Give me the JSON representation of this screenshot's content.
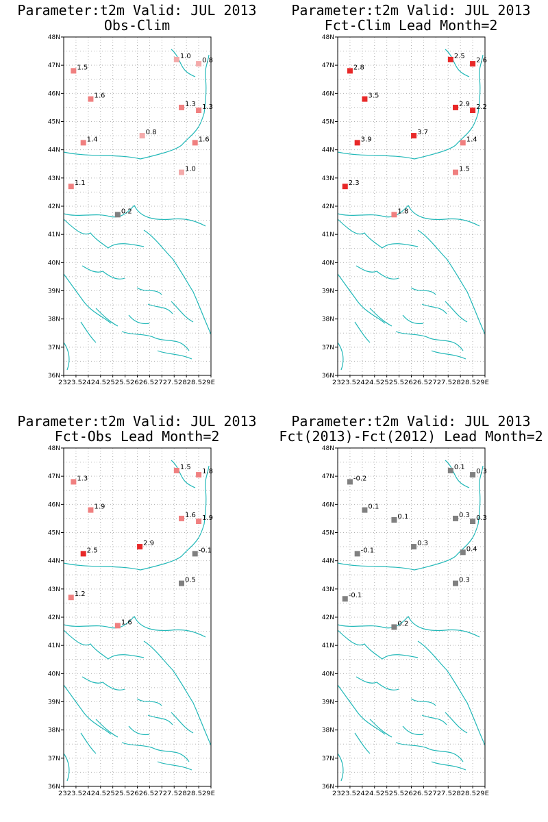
{
  "colors": {
    "coast": "#22b8b8",
    "grid": "#b0b0b0",
    "frame": "#000000",
    "neutral": "#808080",
    "light": "#f4aaaa",
    "medium": "#f08080",
    "strong": "#e84848",
    "stronger": "#e82828"
  },
  "map": {
    "lon_range": [
      23,
      29
    ],
    "lat_range": [
      36,
      48
    ],
    "lat_ticks": [
      "36N",
      "37N",
      "38N",
      "39N",
      "40N",
      "41N",
      "42N",
      "43N",
      "44N",
      "45N",
      "46N",
      "47N",
      "48N"
    ],
    "lon_ticks_text": "2323.52424.52525.52626.52727.52828.529E"
  },
  "panels": [
    {
      "title_line1": "Parameter:t2m Valid: JUL 2013",
      "title_line2": "Obs-Clim",
      "stations": [
        {
          "lon": 23.4,
          "lat": 46.8,
          "label": "1.5",
          "color": "medium"
        },
        {
          "lon": 24.1,
          "lat": 45.8,
          "label": "1.6",
          "color": "medium"
        },
        {
          "lon": 23.8,
          "lat": 44.25,
          "label": "1.4",
          "color": "medium"
        },
        {
          "lon": 23.3,
          "lat": 42.7,
          "label": "1.1",
          "color": "medium"
        },
        {
          "lon": 25.2,
          "lat": 41.7,
          "label": "0.2",
          "color": "neutral"
        },
        {
          "lon": 26.2,
          "lat": 44.5,
          "label": "0.8",
          "color": "light"
        },
        {
          "lon": 27.6,
          "lat": 47.2,
          "label": "1.0",
          "color": "light"
        },
        {
          "lon": 28.5,
          "lat": 47.05,
          "label": "0.8",
          "color": "light"
        },
        {
          "lon": 27.8,
          "lat": 45.5,
          "label": "1.3",
          "color": "medium"
        },
        {
          "lon": 28.5,
          "lat": 45.4,
          "label": "1.3",
          "color": "medium"
        },
        {
          "lon": 28.35,
          "lat": 44.25,
          "label": "1.6",
          "color": "medium"
        },
        {
          "lon": 27.8,
          "lat": 43.2,
          "label": "1.0",
          "color": "light"
        }
      ]
    },
    {
      "title_line1": "Parameter:t2m Valid: JUL 2013",
      "title_line2": "Fct-Clim Lead Month=2",
      "stations": [
        {
          "lon": 23.5,
          "lat": 46.8,
          "label": "2.8",
          "color": "stronger"
        },
        {
          "lon": 24.1,
          "lat": 45.8,
          "label": "3.5",
          "color": "stronger"
        },
        {
          "lon": 23.8,
          "lat": 44.25,
          "label": "3.9",
          "color": "stronger"
        },
        {
          "lon": 23.3,
          "lat": 42.7,
          "label": "2.3",
          "color": "stronger"
        },
        {
          "lon": 25.3,
          "lat": 41.7,
          "label": "1.8",
          "color": "medium"
        },
        {
          "lon": 26.1,
          "lat": 44.5,
          "label": "3.7",
          "color": "stronger"
        },
        {
          "lon": 27.6,
          "lat": 47.2,
          "label": "2.5",
          "color": "stronger"
        },
        {
          "lon": 28.5,
          "lat": 47.05,
          "label": "2.6",
          "color": "stronger"
        },
        {
          "lon": 27.8,
          "lat": 45.5,
          "label": "2.9",
          "color": "stronger"
        },
        {
          "lon": 28.5,
          "lat": 45.4,
          "label": "2.2",
          "color": "stronger"
        },
        {
          "lon": 28.1,
          "lat": 44.25,
          "label": "1.4",
          "color": "medium"
        },
        {
          "lon": 27.8,
          "lat": 43.2,
          "label": "1.5",
          "color": "medium"
        }
      ]
    },
    {
      "title_line1": "Parameter:t2m Valid: JUL 2013",
      "title_line2": "Fct-Obs Lead Month=2",
      "stations": [
        {
          "lon": 23.4,
          "lat": 46.8,
          "label": "1.3",
          "color": "medium"
        },
        {
          "lon": 24.1,
          "lat": 45.8,
          "label": "1.9",
          "color": "medium"
        },
        {
          "lon": 23.8,
          "lat": 44.25,
          "label": "2.5",
          "color": "stronger"
        },
        {
          "lon": 23.3,
          "lat": 42.7,
          "label": "1.2",
          "color": "medium"
        },
        {
          "lon": 25.2,
          "lat": 41.7,
          "label": "1.6",
          "color": "medium"
        },
        {
          "lon": 26.1,
          "lat": 44.5,
          "label": "2.9",
          "color": "stronger"
        },
        {
          "lon": 27.6,
          "lat": 47.2,
          "label": "1.5",
          "color": "medium"
        },
        {
          "lon": 28.5,
          "lat": 47.05,
          "label": "1.8",
          "color": "medium"
        },
        {
          "lon": 27.8,
          "lat": 45.5,
          "label": "1.6",
          "color": "medium"
        },
        {
          "lon": 28.5,
          "lat": 45.4,
          "label": "1.9",
          "color": "medium"
        },
        {
          "lon": 28.35,
          "lat": 44.25,
          "label": "-0.1",
          "color": "neutral"
        },
        {
          "lon": 27.8,
          "lat": 43.2,
          "label": "0.5",
          "color": "neutral"
        }
      ]
    },
    {
      "title_line1": "Parameter:t2m Valid: JUL 2013",
      "title_line2": "Fct(2013)-Fct(2012) Lead Month=2",
      "stations": [
        {
          "lon": 23.5,
          "lat": 46.8,
          "label": "-0.2",
          "color": "neutral"
        },
        {
          "lon": 24.1,
          "lat": 45.8,
          "label": "0.1",
          "color": "neutral"
        },
        {
          "lon": 23.8,
          "lat": 44.25,
          "label": "-0.1",
          "color": "neutral"
        },
        {
          "lon": 23.3,
          "lat": 42.65,
          "label": "-0.1",
          "color": "neutral"
        },
        {
          "lon": 25.3,
          "lat": 41.65,
          "label": "0.2",
          "color": "neutral"
        },
        {
          "lon": 25.3,
          "lat": 45.45,
          "label": "0.1",
          "color": "neutral"
        },
        {
          "lon": 26.1,
          "lat": 44.5,
          "label": "0.3",
          "color": "neutral"
        },
        {
          "lon": 27.6,
          "lat": 47.2,
          "label": "0.1",
          "color": "neutral"
        },
        {
          "lon": 28.5,
          "lat": 47.05,
          "label": "0.3",
          "color": "neutral"
        },
        {
          "lon": 27.8,
          "lat": 45.5,
          "label": "0.3",
          "color": "neutral"
        },
        {
          "lon": 28.5,
          "lat": 45.4,
          "label": "0.3",
          "color": "neutral"
        },
        {
          "lon": 28.1,
          "lat": 44.3,
          "label": "0.4",
          "color": "neutral"
        },
        {
          "lon": 27.8,
          "lat": 43.2,
          "label": "0.3",
          "color": "neutral"
        }
      ]
    }
  ]
}
